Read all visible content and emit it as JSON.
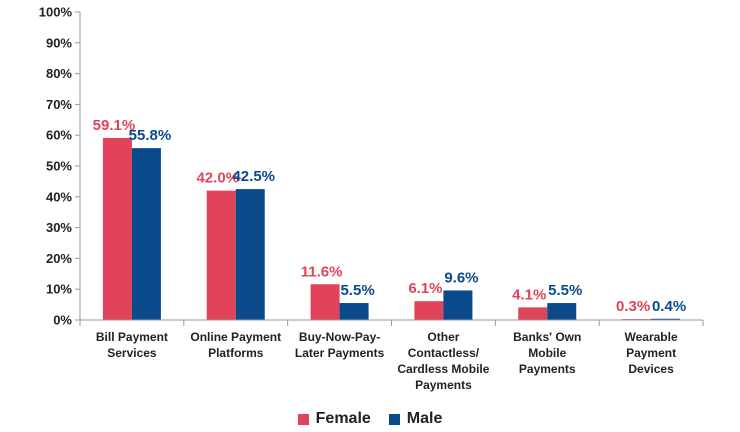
{
  "chart_data": {
    "type": "bar",
    "title": "",
    "xlabel": "",
    "ylabel": "",
    "ylim": [
      0,
      100
    ],
    "yticks": [
      "0%",
      "10%",
      "20%",
      "30%",
      "40%",
      "50%",
      "60%",
      "70%",
      "80%",
      "90%",
      "100%"
    ],
    "grid": false,
    "legend": "bottom",
    "categories": [
      [
        "Bill Payment",
        "Services"
      ],
      [
        "Online Payment",
        "Platforms"
      ],
      [
        "Buy-Now-Pay-",
        "Later Payments"
      ],
      [
        "Other",
        "Contactless/",
        "Cardless Mobile",
        "Payments"
      ],
      [
        "Banks' Own",
        "Mobile",
        "Payments"
      ],
      [
        "Wearable",
        "Payment",
        "Devices"
      ]
    ],
    "series": [
      {
        "name": "Female",
        "color": "#e0435a",
        "values": [
          59.1,
          42.0,
          11.6,
          6.1,
          4.1,
          0.3
        ],
        "labels": [
          "59.1%",
          "42.0%",
          "11.6%",
          "6.1%",
          "4.1%",
          "0.3%"
        ]
      },
      {
        "name": "Male",
        "color": "#0b4a8a",
        "values": [
          55.8,
          42.5,
          5.5,
          9.6,
          5.5,
          0.4
        ],
        "labels": [
          "55.8%",
          "42.5%",
          "5.5%",
          "9.6%",
          "5.5%",
          "0.4%"
        ]
      }
    ]
  }
}
